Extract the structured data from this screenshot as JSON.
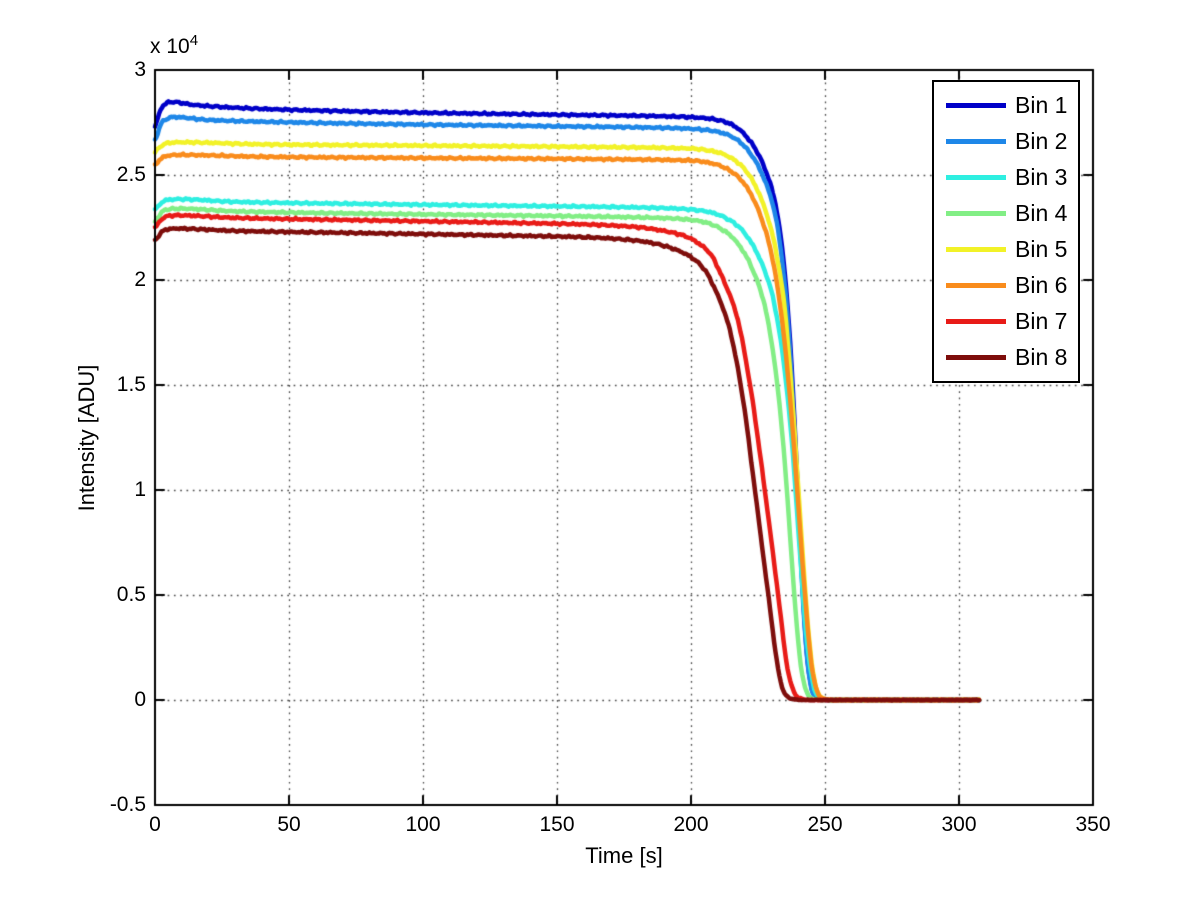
{
  "figure": {
    "background": "#ffffff",
    "axis_color": "#000000",
    "grid_color": "#4a4a4a"
  },
  "chart_data": {
    "type": "line",
    "title": "",
    "xlabel": "Time [s]",
    "ylabel": "Intensity [ADU]",
    "y_axis_multiplier": {
      "base": "x 10",
      "exponent": "4"
    },
    "xlim": [
      0,
      350
    ],
    "ylim": [
      -5000,
      30000
    ],
    "grid": true,
    "grid_style": "dotted",
    "legend_position": "northeast",
    "x_ticks": [
      {
        "value": 0,
        "label": "0"
      },
      {
        "value": 50,
        "label": "50"
      },
      {
        "value": 100,
        "label": "100"
      },
      {
        "value": 150,
        "label": "150"
      },
      {
        "value": 200,
        "label": "200"
      },
      {
        "value": 250,
        "label": "250"
      },
      {
        "value": 300,
        "label": "300"
      },
      {
        "value": 350,
        "label": "350"
      }
    ],
    "y_ticks": [
      {
        "value": -5000,
        "label": "-0.5"
      },
      {
        "value": 0,
        "label": "0"
      },
      {
        "value": 5000,
        "label": "0.5"
      },
      {
        "value": 10000,
        "label": "1"
      },
      {
        "value": 15000,
        "label": "1.5"
      },
      {
        "value": 20000,
        "label": "2"
      },
      {
        "value": 25000,
        "label": "2.5"
      },
      {
        "value": 30000,
        "label": "3"
      }
    ],
    "series": [
      {
        "name": "Bin 1",
        "color": "#0000C8",
        "points": [
          [
            0,
            27300
          ],
          [
            3,
            28300
          ],
          [
            6,
            28480
          ],
          [
            15,
            28330
          ],
          [
            40,
            28150
          ],
          [
            90,
            27990
          ],
          [
            150,
            27870
          ],
          [
            192,
            27790
          ],
          [
            206,
            27700
          ],
          [
            213,
            27520
          ],
          [
            218,
            27170
          ],
          [
            222,
            26620
          ],
          [
            225,
            26020
          ],
          [
            227.5,
            25320
          ],
          [
            229.5,
            24620
          ],
          [
            231,
            23920
          ],
          [
            232.5,
            22920
          ],
          [
            234,
            21520
          ],
          [
            235.5,
            19620
          ],
          [
            237,
            17020
          ],
          [
            238.2,
            14320
          ],
          [
            239.4,
            11220
          ],
          [
            240.6,
            8020
          ],
          [
            241.8,
            5020
          ],
          [
            243,
            2620
          ],
          [
            244.2,
            1120
          ],
          [
            245.5,
            360
          ],
          [
            247,
            80
          ],
          [
            251,
            0
          ],
          [
            307.5,
            0
          ]
        ]
      },
      {
        "name": "Bin 2",
        "color": "#1E87E8",
        "points": [
          [
            0,
            26650
          ],
          [
            3,
            27560
          ],
          [
            7,
            27760
          ],
          [
            20,
            27620
          ],
          [
            50,
            27510
          ],
          [
            100,
            27400
          ],
          [
            150,
            27320
          ],
          [
            192,
            27240
          ],
          [
            206,
            27140
          ],
          [
            213,
            26950
          ],
          [
            218,
            26600
          ],
          [
            222,
            26050
          ],
          [
            225,
            25450
          ],
          [
            227.5,
            24750
          ],
          [
            229.5,
            24050
          ],
          [
            231,
            23350
          ],
          [
            232.5,
            22350
          ],
          [
            234,
            20950
          ],
          [
            235.5,
            19050
          ],
          [
            237,
            16450
          ],
          [
            238.2,
            13750
          ],
          [
            239.4,
            10750
          ],
          [
            240.6,
            7650
          ],
          [
            241.8,
            4750
          ],
          [
            243,
            2450
          ],
          [
            244.2,
            1050
          ],
          [
            245.5,
            320
          ],
          [
            247,
            70
          ],
          [
            251,
            0
          ],
          [
            307.5,
            0
          ]
        ]
      },
      {
        "name": "Bin 3",
        "color": "#2EEFE1",
        "points": [
          [
            0,
            23350
          ],
          [
            4,
            23800
          ],
          [
            9,
            23850
          ],
          [
            30,
            23720
          ],
          [
            80,
            23620
          ],
          [
            130,
            23540
          ],
          [
            170,
            23480
          ],
          [
            195,
            23400
          ],
          [
            205,
            23280
          ],
          [
            210,
            23120
          ],
          [
            214,
            22880
          ],
          [
            218,
            22520
          ],
          [
            221,
            22060
          ],
          [
            224,
            21450
          ],
          [
            227,
            20600
          ],
          [
            229.5,
            19700
          ],
          [
            231.5,
            18600
          ],
          [
            233.5,
            17100
          ],
          [
            235.5,
            15100
          ],
          [
            237.5,
            12500
          ],
          [
            239.5,
            9100
          ],
          [
            241,
            6400
          ],
          [
            242.5,
            3900
          ],
          [
            244,
            2000
          ],
          [
            245.5,
            800
          ],
          [
            247,
            230
          ],
          [
            249,
            50
          ],
          [
            253,
            0
          ],
          [
            307.5,
            0
          ]
        ]
      },
      {
        "name": "Bin 4",
        "color": "#82EE85",
        "points": [
          [
            0,
            22800
          ],
          [
            4,
            23350
          ],
          [
            9,
            23400
          ],
          [
            30,
            23270
          ],
          [
            80,
            23160
          ],
          [
            130,
            23080
          ],
          [
            170,
            23010
          ],
          [
            192,
            22940
          ],
          [
            202,
            22830
          ],
          [
            207,
            22680
          ],
          [
            211,
            22450
          ],
          [
            215,
            22090
          ],
          [
            218,
            21640
          ],
          [
            221,
            21040
          ],
          [
            224,
            20180
          ],
          [
            226.5,
            19280
          ],
          [
            228.5,
            18180
          ],
          [
            230.5,
            16680
          ],
          [
            232.5,
            14680
          ],
          [
            234.5,
            12080
          ],
          [
            236.5,
            8680
          ],
          [
            238,
            5980
          ],
          [
            239.5,
            3480
          ],
          [
            241,
            1650
          ],
          [
            242.5,
            620
          ],
          [
            244,
            180
          ],
          [
            246,
            40
          ],
          [
            250,
            0
          ],
          [
            307.5,
            0
          ]
        ]
      },
      {
        "name": "Bin 5",
        "color": "#F2F228",
        "points": [
          [
            0,
            26100
          ],
          [
            4,
            26500
          ],
          [
            9,
            26560
          ],
          [
            40,
            26460
          ],
          [
            100,
            26400
          ],
          [
            160,
            26340
          ],
          [
            200,
            26260
          ],
          [
            210,
            26080
          ],
          [
            216,
            25730
          ],
          [
            220,
            25280
          ],
          [
            223,
            24730
          ],
          [
            226,
            23930
          ],
          [
            228.5,
            23030
          ],
          [
            231,
            21830
          ],
          [
            233,
            20430
          ],
          [
            235,
            18630
          ],
          [
            236.5,
            16430
          ],
          [
            238,
            13930
          ],
          [
            239.5,
            11130
          ],
          [
            241,
            8230
          ],
          [
            242.5,
            5430
          ],
          [
            244,
            3030
          ],
          [
            245.5,
            1330
          ],
          [
            247,
            480
          ],
          [
            248.5,
            120
          ],
          [
            252,
            0
          ],
          [
            307.5,
            0
          ]
        ]
      },
      {
        "name": "Bin 6",
        "color": "#F98C1C",
        "points": [
          [
            0,
            25500
          ],
          [
            4,
            25900
          ],
          [
            9,
            25960
          ],
          [
            40,
            25870
          ],
          [
            100,
            25810
          ],
          [
            160,
            25760
          ],
          [
            200,
            25690
          ],
          [
            209,
            25520
          ],
          [
            215,
            25170
          ],
          [
            219,
            24720
          ],
          [
            222,
            24170
          ],
          [
            225,
            23370
          ],
          [
            227.5,
            22470
          ],
          [
            230,
            21270
          ],
          [
            232,
            19870
          ],
          [
            234,
            18070
          ],
          [
            236,
            15670
          ],
          [
            237.5,
            13570
          ],
          [
            239,
            11070
          ],
          [
            240.5,
            8470
          ],
          [
            242,
            5870
          ],
          [
            243.5,
            3470
          ],
          [
            245,
            1670
          ],
          [
            246.5,
            630
          ],
          [
            248,
            180
          ],
          [
            250,
            40
          ],
          [
            254,
            0
          ],
          [
            307.5,
            0
          ]
        ]
      },
      {
        "name": "Bin 7",
        "color": "#E81B17",
        "points": [
          [
            0,
            22500
          ],
          [
            4,
            23020
          ],
          [
            8,
            23080
          ],
          [
            30,
            22960
          ],
          [
            80,
            22840
          ],
          [
            130,
            22730
          ],
          [
            160,
            22650
          ],
          [
            180,
            22520
          ],
          [
            188,
            22380
          ],
          [
            194,
            22230
          ],
          [
            199,
            22030
          ],
          [
            203,
            21730
          ],
          [
            207,
            21280
          ],
          [
            212,
            20030
          ],
          [
            217,
            18330
          ],
          [
            222,
            15030
          ],
          [
            227.5,
            10030
          ],
          [
            232.5,
            5030
          ],
          [
            236,
            1530
          ],
          [
            238,
            500
          ],
          [
            240,
            120
          ],
          [
            244,
            0
          ],
          [
            307.5,
            0
          ]
        ]
      },
      {
        "name": "Bin 8",
        "color": "#7E0D0B",
        "points": [
          [
            0,
            21900
          ],
          [
            4,
            22400
          ],
          [
            8,
            22450
          ],
          [
            30,
            22340
          ],
          [
            80,
            22230
          ],
          [
            130,
            22120
          ],
          [
            160,
            22040
          ],
          [
            178,
            21900
          ],
          [
            186,
            21750
          ],
          [
            192,
            21550
          ],
          [
            197,
            21300
          ],
          [
            201,
            21000
          ],
          [
            205,
            20500
          ],
          [
            209,
            19550
          ],
          [
            214,
            17850
          ],
          [
            219,
            14650
          ],
          [
            224,
            9850
          ],
          [
            229,
            4850
          ],
          [
            233,
            1150
          ],
          [
            235,
            300
          ],
          [
            237,
            80
          ],
          [
            241,
            0
          ],
          [
            307.5,
            0
          ]
        ]
      }
    ]
  },
  "legend": {
    "items": [
      {
        "label": "Bin 1",
        "color": "#0000C8"
      },
      {
        "label": "Bin 2",
        "color": "#1E87E8"
      },
      {
        "label": "Bin 3",
        "color": "#2EEFE1"
      },
      {
        "label": "Bin 4",
        "color": "#82EE85"
      },
      {
        "label": "Bin 5",
        "color": "#F2F228"
      },
      {
        "label": "Bin 6",
        "color": "#F98C1C"
      },
      {
        "label": "Bin 7",
        "color": "#E81B17"
      },
      {
        "label": "Bin 8",
        "color": "#7E0D0B"
      }
    ]
  }
}
